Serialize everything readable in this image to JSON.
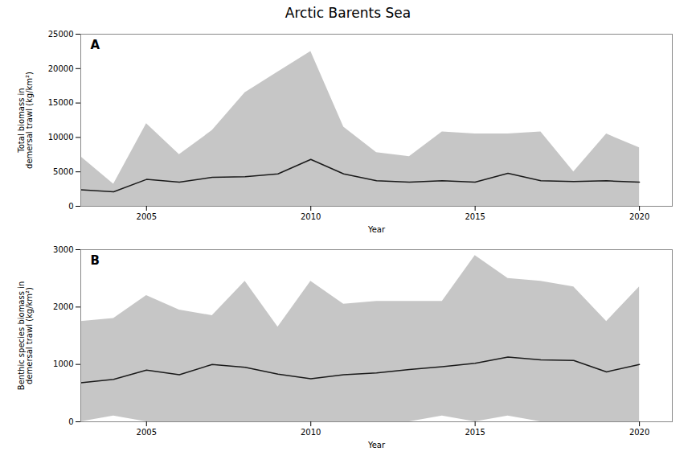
{
  "chart_data": [
    {
      "type": "line",
      "title": "Arctic Barents Sea",
      "panel_label": "A",
      "x": [
        2003,
        2004,
        2005,
        2006,
        2007,
        2008,
        2009,
        2010,
        2011,
        2012,
        2013,
        2014,
        2015,
        2016,
        2017,
        2018,
        2019,
        2020
      ],
      "values": [
        2400,
        2100,
        3900,
        3500,
        4200,
        4300,
        4700,
        6800,
        4700,
        3700,
        3500,
        3700,
        3500,
        4800,
        3700,
        3600,
        3700,
        3500
      ],
      "upper": [
        7200,
        3200,
        12000,
        7500,
        11000,
        16500,
        19500,
        22500,
        11500,
        7800,
        7200,
        10800,
        10500,
        10500,
        10800,
        5000,
        10500,
        8500
      ],
      "lower": [
        0,
        0,
        0,
        0,
        0,
        0,
        0,
        0,
        0,
        0,
        0,
        0,
        0,
        0,
        0,
        0,
        0,
        0
      ],
      "color": "#1a1a1a",
      "xlabel": "Year",
      "ylabel": "Total biomass in\ndemersal trawl (kg/km²)",
      "xlim": [
        2003,
        2021
      ],
      "xticks": [
        2005,
        2010,
        2015,
        2020
      ],
      "ylim": [
        0,
        25000
      ],
      "yticks": [
        0,
        5000,
        10000,
        15000,
        20000,
        25000
      ],
      "grid": false
    },
    {
      "type": "line",
      "panel_label": "B",
      "x": [
        2003,
        2004,
        2005,
        2006,
        2007,
        2008,
        2009,
        2010,
        2011,
        2012,
        2013,
        2014,
        2015,
        2016,
        2017,
        2018,
        2019,
        2020
      ],
      "values": [
        680,
        740,
        900,
        820,
        1000,
        950,
        830,
        750,
        820,
        850,
        910,
        960,
        1020,
        1130,
        1080,
        1070,
        870,
        1000
      ],
      "upper": [
        1750,
        1800,
        2200,
        1950,
        1850,
        2450,
        1650,
        2450,
        2050,
        2100,
        2100,
        2100,
        2900,
        2500,
        2450,
        2350,
        1750,
        2350
      ],
      "lower": [
        0,
        100,
        0,
        0,
        0,
        0,
        0,
        0,
        0,
        0,
        0,
        100,
        0,
        100,
        0,
        0,
        0,
        0
      ],
      "color": "#1a1a1a",
      "xlabel": "Year",
      "ylabel": "Benthic species biomass in\ndemersal trawl (kg/km²)",
      "xlim": [
        2003,
        2021
      ],
      "xticks": [
        2005,
        2010,
        2015,
        2020
      ],
      "ylim": [
        0,
        3000
      ],
      "yticks": [
        0,
        1000,
        2000,
        3000
      ],
      "grid": false
    }
  ]
}
